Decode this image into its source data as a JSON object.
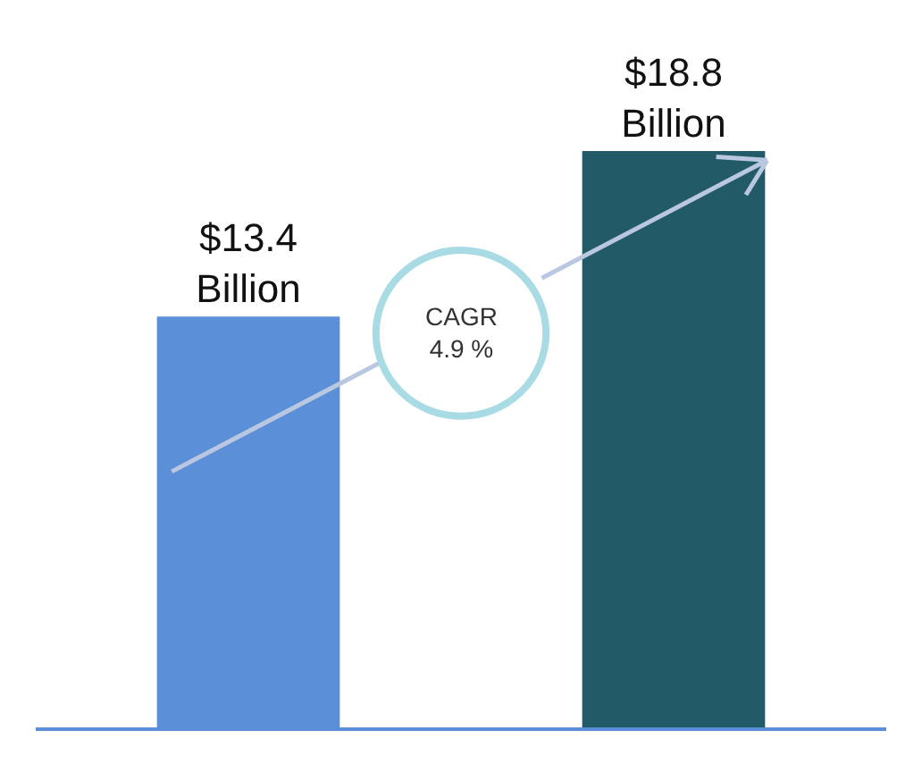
{
  "chart_data": {
    "type": "bar",
    "categories": [
      null,
      null
    ],
    "values": [
      13.4,
      18.8
    ],
    "colors": [
      "#5b8fd8",
      "#235a68"
    ],
    "value_labels": [
      "$13.4\nBillion",
      "$18.8\nBillion"
    ],
    "annotations": [
      "CAGR\n4.9 %"
    ],
    "grid": false,
    "legend": false
  }
}
